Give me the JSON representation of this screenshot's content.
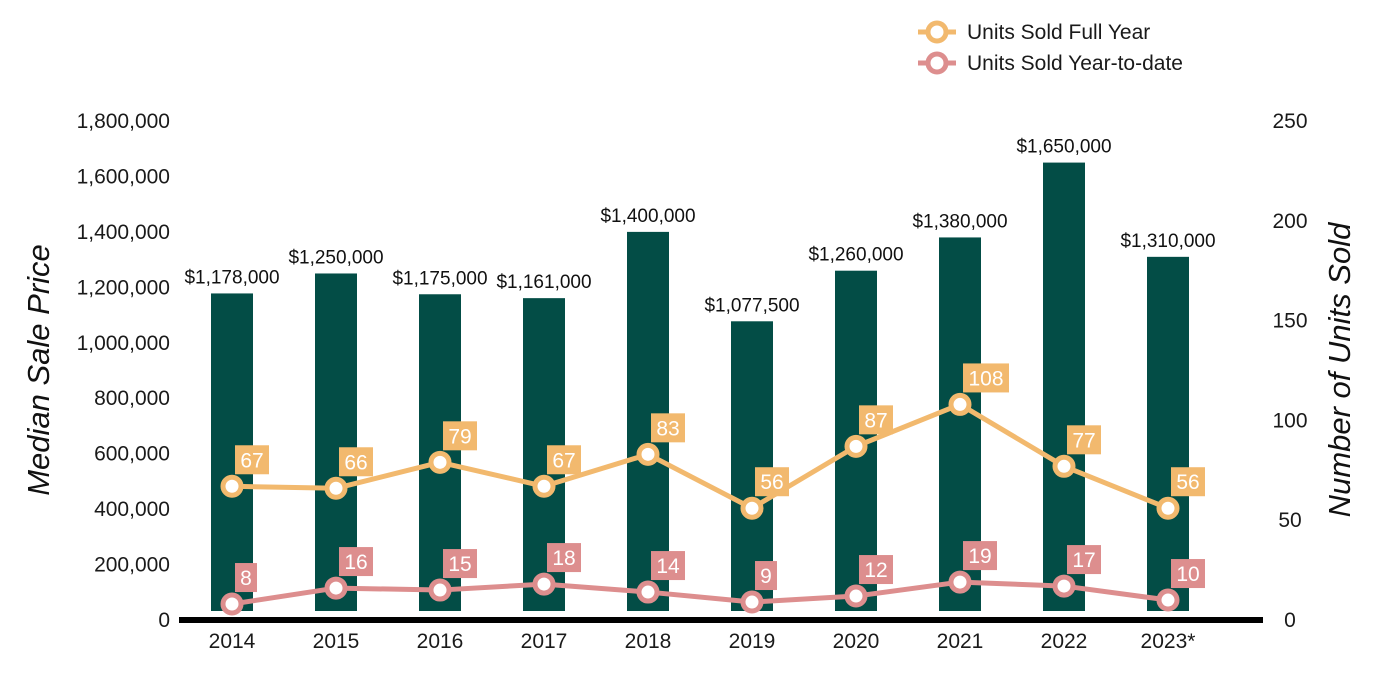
{
  "chart_data": {
    "type": "bar",
    "categories": [
      "2014",
      "2015",
      "2016",
      "2017",
      "2018",
      "2019",
      "2020",
      "2021",
      "2022",
      "2023*"
    ],
    "bar_series": {
      "values": [
        1178000,
        1250000,
        1175000,
        1161000,
        1400000,
        1077500,
        1260000,
        1380000,
        1650000,
        1310000
      ],
      "labels": [
        "$1,178,000",
        "$1,250,000",
        "$1,175,000",
        "$1,161,000",
        "$1,400,000",
        "$1,077,500",
        "$1,260,000",
        "$1,380,000",
        "$1,650,000",
        "$1,310,000"
      ],
      "color": "#034d46",
      "axis": "left"
    },
    "line_series": [
      {
        "name": "Units Sold Full Year",
        "type": "line",
        "axis": "right",
        "values": [
          67,
          66,
          79,
          67,
          83,
          56,
          87,
          108,
          77,
          56
        ],
        "color": "#f2b96e"
      },
      {
        "name": "Units Sold Year-to-date",
        "type": "line",
        "axis": "right",
        "values": [
          8,
          16,
          15,
          18,
          14,
          9,
          12,
          19,
          17,
          10
        ],
        "color": "#dd8e8e"
      }
    ],
    "ylabel": "Median Sale Price",
    "y2label": "Number of Units Sold",
    "ylim": [
      0,
      1800000
    ],
    "y2lim": [
      0,
      250
    ],
    "yticks": [
      "0",
      "200,000",
      "400,000",
      "600,000",
      "800,000",
      "1,000,000",
      "1,200,000",
      "1,400,000",
      "1,600,000",
      "1,800,000"
    ],
    "y2ticks": [
      "0",
      "50",
      "100",
      "150",
      "200",
      "250"
    ],
    "grid": false,
    "legend_position": "top-right"
  }
}
